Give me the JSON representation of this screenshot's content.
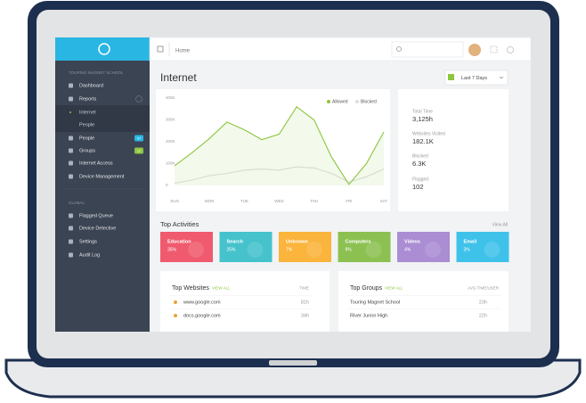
{
  "sidebar": {
    "org": "TOURING MAGNET SCHOOL",
    "menu": [
      {
        "label": "Dashboard"
      },
      {
        "label": "Reports"
      },
      {
        "label": "Internet"
      },
      {
        "label": "People"
      },
      {
        "label": "People",
        "badge": "67"
      },
      {
        "label": "Groups",
        "badge": "12"
      },
      {
        "label": "Internet Access"
      },
      {
        "label": "Device Management"
      }
    ],
    "global": "GLOBAL",
    "global_menu": [
      {
        "label": "Flagged Queue"
      },
      {
        "label": "Device Detective"
      },
      {
        "label": "Settings"
      },
      {
        "label": "Audit Log"
      }
    ]
  },
  "topbar": {
    "breadcrumb": "Home"
  },
  "page": {
    "title": "Internet",
    "range": "Last 7 Days"
  },
  "chart_data": {
    "type": "line",
    "x": [
      0,
      0.5,
      1,
      1.5,
      2,
      2.5,
      3,
      3.5,
      4,
      4.5,
      5,
      5.5,
      6
    ],
    "xlim": [
      0,
      6
    ],
    "xticks": [
      {
        "value": 0,
        "label": "SUN"
      },
      {
        "value": 1,
        "label": "MON"
      },
      {
        "value": 2,
        "label": "TUE"
      },
      {
        "value": 3,
        "label": "WED"
      },
      {
        "value": 4,
        "label": "THU"
      },
      {
        "value": 5,
        "label": "FRI"
      },
      {
        "value": 6,
        "label": "SAT"
      }
    ],
    "ylim": [
      0,
      400000
    ],
    "yticks": [
      0,
      {
        "value": 100000,
        "label": "100K"
      },
      {
        "value": 200000,
        "label": "200K"
      },
      {
        "value": 300000,
        "label": "300K"
      },
      {
        "value": 400000,
        "label": "400K"
      }
    ],
    "grid": false,
    "series": [
      {
        "name": "Allowed",
        "color": "#8cc63f",
        "values": [
          90000,
          150000,
          215000,
          290000,
          255000,
          210000,
          235000,
          360000,
          300000,
          130000,
          5000,
          100000,
          245000
        ]
      },
      {
        "name": "Blocked",
        "color": "#dedede",
        "values": [
          10000,
          25000,
          45000,
          55000,
          70000,
          75000,
          70000,
          85000,
          80000,
          55000,
          15000,
          40000,
          75000
        ]
      }
    ]
  },
  "stats": [
    {
      "label": "Total Time",
      "value": "3,125h"
    },
    {
      "label": "Websites Visited",
      "value": "182.1K"
    },
    {
      "label": "Blocked",
      "value": "6.3K"
    },
    {
      "label": "Flagged",
      "value": "102"
    }
  ],
  "activities": {
    "title": "Top Activities",
    "link": "View All",
    "tiles": [
      {
        "name": "Education",
        "value": "35%",
        "color": "#f05a6e"
      },
      {
        "name": "Search",
        "value": "25%",
        "color": "#45c2cc"
      },
      {
        "name": "Unknown",
        "value": "7%",
        "color": "#fbb43c"
      },
      {
        "name": "Computers",
        "value": "9%",
        "color": "#8cc152"
      },
      {
        "name": "Videos",
        "value": "4%",
        "color": "#aa8dd3"
      },
      {
        "name": "Email",
        "value": "3%",
        "color": "#3fc2ea"
      }
    ]
  },
  "websites": {
    "title": "Top Websites",
    "link": "VIEW ALL",
    "column": "TIME",
    "rows": [
      [
        "www.google.com",
        "81h"
      ],
      [
        "docs.google.com",
        "34h"
      ]
    ]
  },
  "groups": {
    "title": "Top Groups",
    "link": "VIEW ALL",
    "column": "AVG TIME/USER",
    "rows": [
      [
        "Touring Magnet School",
        "23h"
      ],
      [
        "River Junior High",
        "22h"
      ]
    ]
  }
}
